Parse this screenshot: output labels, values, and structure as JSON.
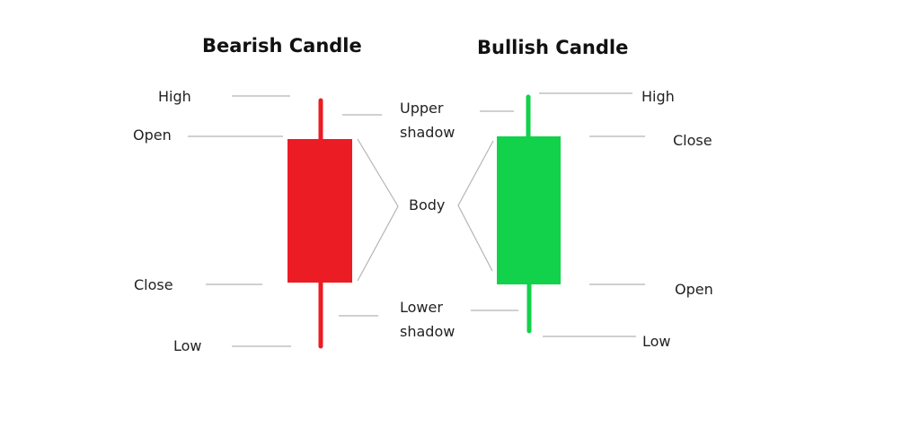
{
  "bearish": {
    "title": "Bearish Candle",
    "color": "#ec1c24",
    "labels": {
      "high": "High",
      "open": "Open",
      "close": "Close",
      "low": "Low"
    }
  },
  "bullish": {
    "title": "Bullish Candle",
    "color": "#12d14a",
    "labels": {
      "high": "High",
      "close": "Close",
      "open": "Open",
      "low": "Low"
    }
  },
  "center": {
    "upper_shadow": [
      "Upper",
      "shadow"
    ],
    "body": "Body",
    "lower_shadow": [
      "Lower",
      "shadow"
    ]
  },
  "line_color": "#b5b5b5"
}
